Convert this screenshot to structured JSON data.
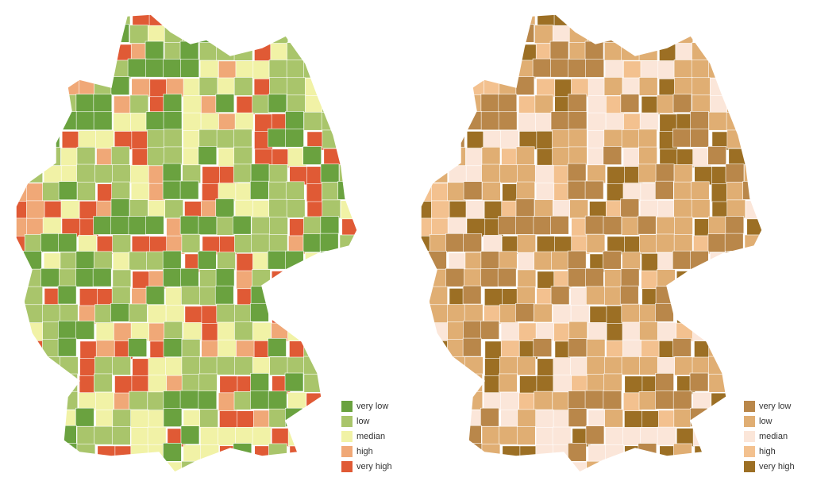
{
  "maps": [
    {
      "legend": [
        {
          "label": "very low",
          "color": "#6aa23f"
        },
        {
          "label": "low",
          "color": "#a9c56b"
        },
        {
          "label": "median",
          "color": "#f1f2a6"
        },
        {
          "label": "high",
          "color": "#f0a877"
        },
        {
          "label": "very high",
          "color": "#e05a35"
        }
      ]
    },
    {
      "legend": [
        {
          "label": "very low",
          "color": "#b9874a"
        },
        {
          "label": "low",
          "color": "#e0ae73"
        },
        {
          "label": "median",
          "color": "#fbe6d9"
        },
        {
          "label": "high",
          "color": "#f3c18f"
        },
        {
          "label": "very high",
          "color": "#9c6f24"
        }
      ]
    }
  ]
}
